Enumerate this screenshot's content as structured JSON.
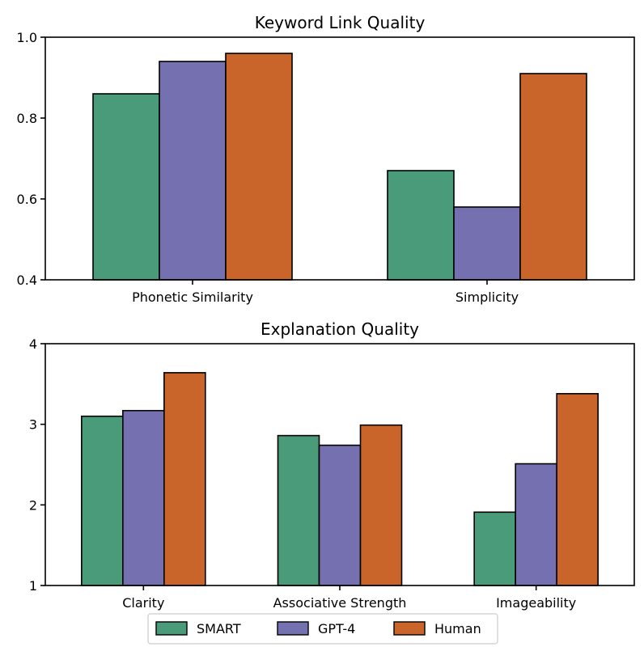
{
  "colors": {
    "SMART": "#4a9b79",
    "GPT-4": "#7570b0",
    "Human": "#c9642a",
    "edge": "#000000"
  },
  "legend": {
    "placement": "bottom-center",
    "entries": [
      "SMART",
      "GPT-4",
      "Human"
    ]
  },
  "chart_data": [
    {
      "type": "bar",
      "title": "Keyword Link Quality",
      "xlabel": "",
      "ylabel": "",
      "categories": [
        "Phonetic Similarity",
        "Simplicity"
      ],
      "series": [
        {
          "name": "SMART",
          "values": [
            0.86,
            0.67
          ]
        },
        {
          "name": "GPT-4",
          "values": [
            0.94,
            0.58
          ]
        },
        {
          "name": "Human",
          "values": [
            0.96,
            0.91
          ]
        }
      ],
      "ylim": [
        0.4,
        1.0
      ],
      "yticks": [
        0.4,
        0.6,
        0.8,
        1.0
      ],
      "ytick_labels": [
        "0.4",
        "0.6",
        "0.8",
        "1.0"
      ],
      "grid": false
    },
    {
      "type": "bar",
      "title": "Explanation Quality",
      "xlabel": "",
      "ylabel": "",
      "categories": [
        "Clarity",
        "Associative Strength",
        "Imageability"
      ],
      "series": [
        {
          "name": "SMART",
          "values": [
            3.1,
            2.86,
            1.91
          ]
        },
        {
          "name": "GPT-4",
          "values": [
            3.17,
            2.74,
            2.51
          ]
        },
        {
          "name": "Human",
          "values": [
            3.64,
            2.99,
            3.38
          ]
        }
      ],
      "ylim": [
        1,
        4
      ],
      "yticks": [
        1,
        2,
        3,
        4
      ],
      "ytick_labels": [
        "1",
        "2",
        "3",
        "4"
      ],
      "grid": false
    }
  ]
}
